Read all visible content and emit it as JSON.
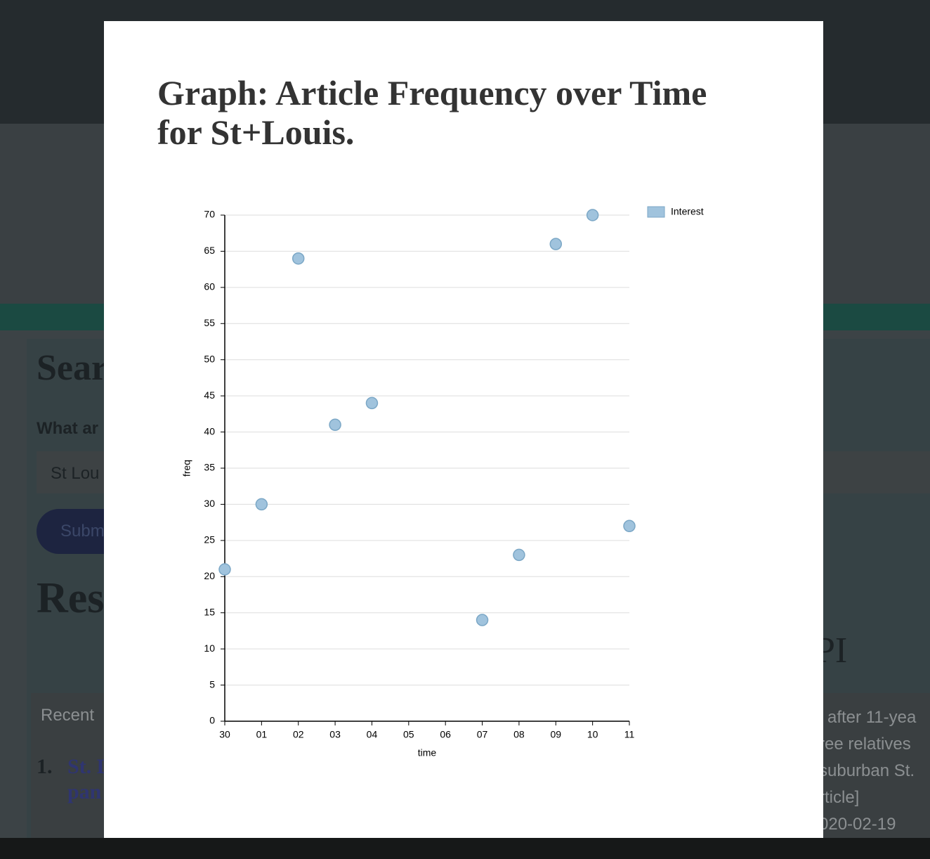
{
  "background": {
    "search_heading": "Sear",
    "question_label": "What ar",
    "input_value": "St Lou",
    "submit_button": "Subm",
    "results_heading": "Res",
    "api_heading": "PI",
    "recent_label": "Recent",
    "result_number": "1.",
    "result_link": [
      "St. L",
      "pan"
    ],
    "result_snippet": [
      "l after 11-yea",
      "ree relatives",
      "suburban St.",
      "rticle]",
      "020-02-19"
    ]
  },
  "modal": {
    "title": "Graph: Article Frequency over Time for St+Louis."
  },
  "chart_data": {
    "type": "scatter",
    "x_label": "time",
    "y_label": "freq",
    "categories": [
      "30",
      "01",
      "02",
      "03",
      "04",
      "05",
      "06",
      "07",
      "08",
      "09",
      "10",
      "11"
    ],
    "series": [
      {
        "name": "Interest",
        "color": "#a0c3dd",
        "values": [
          21,
          30,
          64,
          41,
          44,
          null,
          null,
          14,
          23,
          66,
          70,
          27
        ]
      }
    ],
    "ylim": [
      0,
      70
    ],
    "yticks": [
      0,
      5,
      10,
      15,
      20,
      25,
      30,
      35,
      40,
      45,
      50,
      55,
      60,
      65,
      70
    ],
    "grid": true,
    "legend": "upper right"
  }
}
